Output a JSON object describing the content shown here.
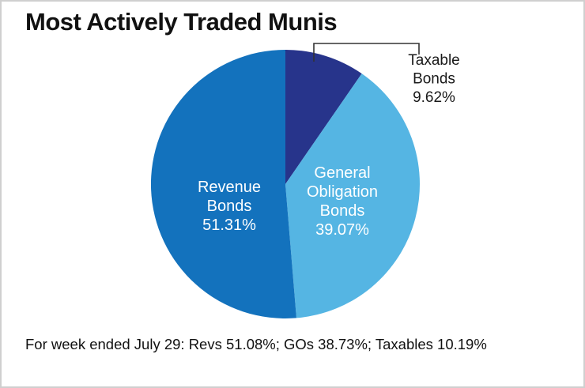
{
  "chart_data": {
    "type": "pie",
    "title": "Most Actively Traded Munis",
    "slices": [
      {
        "name": "Taxable Bonds",
        "label_lines": [
          "Taxable",
          "Bonds"
        ],
        "value": 9.62,
        "value_label": "9.62%",
        "color": "#27348b",
        "label_color": "#1a1a1a"
      },
      {
        "name": "General Obligation Bonds",
        "label_lines": [
          "General",
          "Obligation",
          "Bonds"
        ],
        "value": 39.07,
        "value_label": "39.07%",
        "color": "#55b5e3",
        "label_color": "#ffffff"
      },
      {
        "name": "Revenue Bonds",
        "label_lines": [
          "Revenue",
          "Bonds"
        ],
        "value": 51.31,
        "value_label": "51.31%",
        "color": "#1372bd",
        "label_color": "#ffffff"
      }
    ],
    "start": "12 o'clock, clockwise",
    "footnote": "For week ended July 29: Revs 51.08%; GOs 38.73%; Taxables 10.19%"
  }
}
